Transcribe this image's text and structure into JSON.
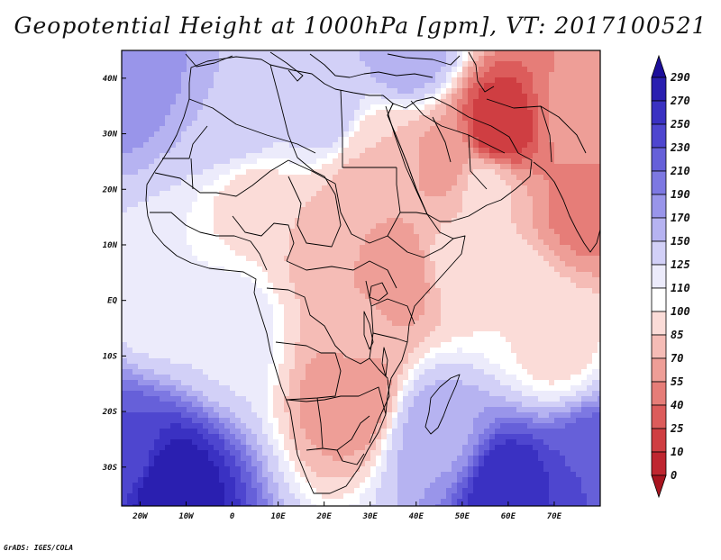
{
  "title": "Geopotential Height at 1000hPa [gpm], VT: 2017100521",
  "credit": "GrADS: IGES/COLA",
  "map": {
    "lon_range": [
      -24,
      80
    ],
    "lat_range": [
      -37,
      45
    ],
    "lat_labels": [
      "40N",
      "30N",
      "20N",
      "10N",
      "EQ",
      "10S",
      "20S",
      "30S"
    ],
    "lat_values": [
      40,
      30,
      20,
      10,
      0,
      -10,
      -20,
      -30
    ],
    "lon_labels": [
      "20W",
      "10W",
      "0",
      "10E",
      "20E",
      "30E",
      "40E",
      "50E",
      "60E",
      "70E"
    ],
    "lon_values": [
      -20,
      -10,
      0,
      10,
      20,
      30,
      40,
      50,
      60,
      70
    ],
    "field_features": [
      {
        "lon": -14,
        "lat": -34,
        "value": 290
      },
      {
        "lon": -24,
        "lat": -28,
        "value": 230
      },
      {
        "lon": 60,
        "lat": -34,
        "value": 270
      },
      {
        "lon": 78,
        "lat": -30,
        "value": 230
      },
      {
        "lon": -22,
        "lat": 42,
        "value": 190
      },
      {
        "lon": 38,
        "lat": 45,
        "value": 170
      },
      {
        "lon": 0,
        "lat": 34,
        "value": 150
      },
      {
        "lon": 20,
        "lat": 35,
        "value": 140
      },
      {
        "lon": 45,
        "lat": -24,
        "value": 165
      },
      {
        "lon": -15,
        "lat": 0,
        "value": 110
      },
      {
        "lon": 0,
        "lat": -5,
        "value": 118
      },
      {
        "lon": 58,
        "lat": 31,
        "value": 10
      },
      {
        "lon": 76,
        "lat": 16,
        "value": 50
      },
      {
        "lon": 40,
        "lat": 20,
        "value": 70
      },
      {
        "lon": 30,
        "lat": 18,
        "value": 70
      },
      {
        "lon": 20,
        "lat": 10,
        "value": 80
      },
      {
        "lon": 35,
        "lat": 5,
        "value": 55
      },
      {
        "lon": 27,
        "lat": -5,
        "value": 75
      },
      {
        "lon": 26,
        "lat": -17,
        "value": 55
      },
      {
        "lon": 5,
        "lat": 17,
        "value": 95
      },
      {
        "lon": 50,
        "lat": 8,
        "value": 95
      },
      {
        "lon": 62,
        "lat": 0,
        "value": 100
      },
      {
        "lon": 70,
        "lat": -8,
        "value": 95
      },
      {
        "lon": 75,
        "lat": 33,
        "value": 60
      },
      {
        "lon": 55,
        "lat": 20,
        "value": 90
      },
      {
        "lon": 32,
        "lat": 26,
        "value": 85
      },
      {
        "lon": 46,
        "lat": 25,
        "value": 65
      }
    ]
  },
  "colorbar": {
    "labels": [
      "290",
      "270",
      "250",
      "230",
      "210",
      "190",
      "170",
      "150",
      "125",
      "110",
      "100",
      "85",
      "70",
      "55",
      "40",
      "25",
      "10",
      "0"
    ],
    "colors": [
      "#1c0e9a",
      "#2a1fb0",
      "#3a31c2",
      "#4e46cf",
      "#6660d9",
      "#7d78e2",
      "#9995ea",
      "#b6b3f1",
      "#d2d0f7",
      "#ecebfb",
      "#ffffff",
      "#fbdcd8",
      "#f5bcb6",
      "#ee9e97",
      "#e67d78",
      "#dc5c5b",
      "#cf3e42",
      "#bf2630",
      "#a8141f"
    ]
  },
  "colors": {
    "border": "#000000",
    "frame": "#000000"
  }
}
